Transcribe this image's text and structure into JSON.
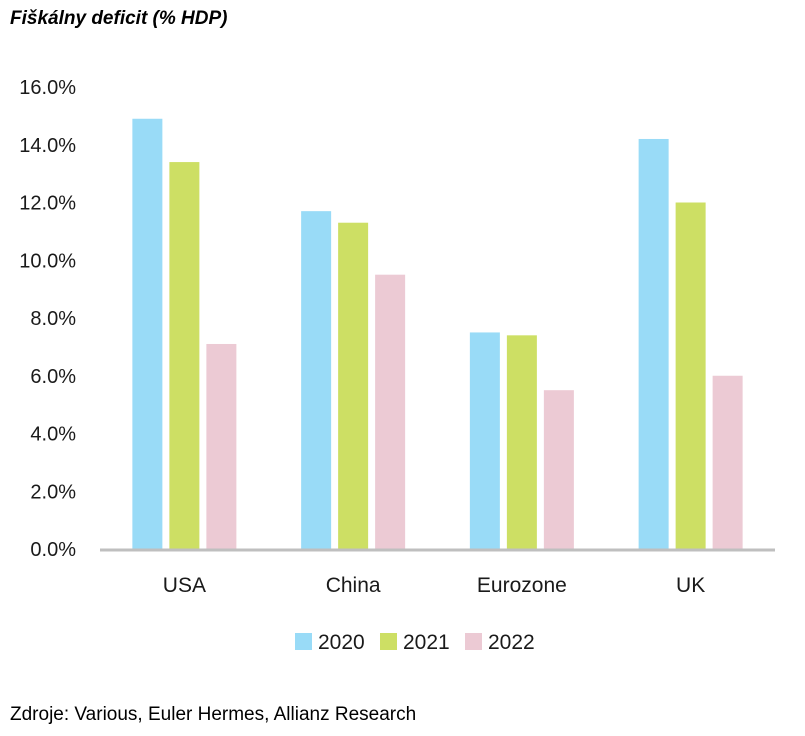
{
  "title": "Fiškálny deficit (% HDP)",
  "source": "Zdroje: Various, Euler Hermes, Allianz Research",
  "chart_data": {
    "type": "bar",
    "categories": [
      "USA",
      "China",
      "Eurozone",
      "UK"
    ],
    "series": [
      {
        "name": "2020",
        "color": "#99dbf7",
        "values": [
          14.9,
          11.7,
          7.5,
          14.2
        ]
      },
      {
        "name": "2021",
        "color": "#cddf64",
        "values": [
          13.4,
          11.3,
          7.4,
          12.0
        ]
      },
      {
        "name": "2022",
        "color": "#eccad4",
        "values": [
          7.1,
          9.5,
          5.5,
          6.0
        ]
      }
    ],
    "ylim": [
      0,
      16
    ],
    "yticks": [
      "0.0%",
      "2.0%",
      "4.0%",
      "6.0%",
      "8.0%",
      "10.0%",
      "12.0%",
      "14.0%",
      "16.0%"
    ],
    "legend_position": "bottom",
    "grid": false
  }
}
